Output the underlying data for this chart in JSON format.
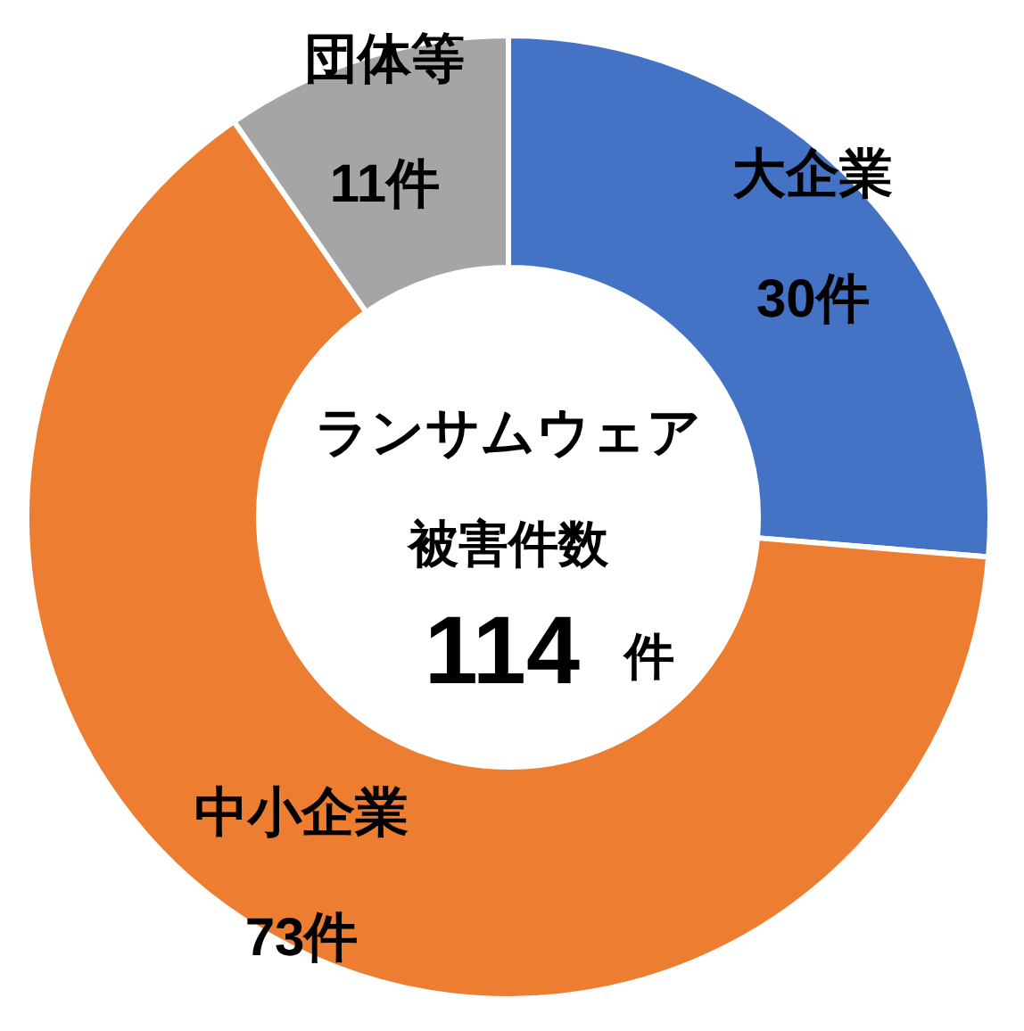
{
  "chart_data": {
    "type": "donut",
    "categories": [
      "大企業",
      "中小企業",
      "団体等"
    ],
    "values": [
      30,
      73,
      11
    ],
    "colors": [
      "#4472c4",
      "#ed7d31",
      "#a5a5a5"
    ],
    "value_labels": [
      "30件",
      "73件",
      "11件"
    ],
    "annotations": [
      "ランサムウェア",
      "被害件数",
      "114",
      "件"
    ]
  }
}
